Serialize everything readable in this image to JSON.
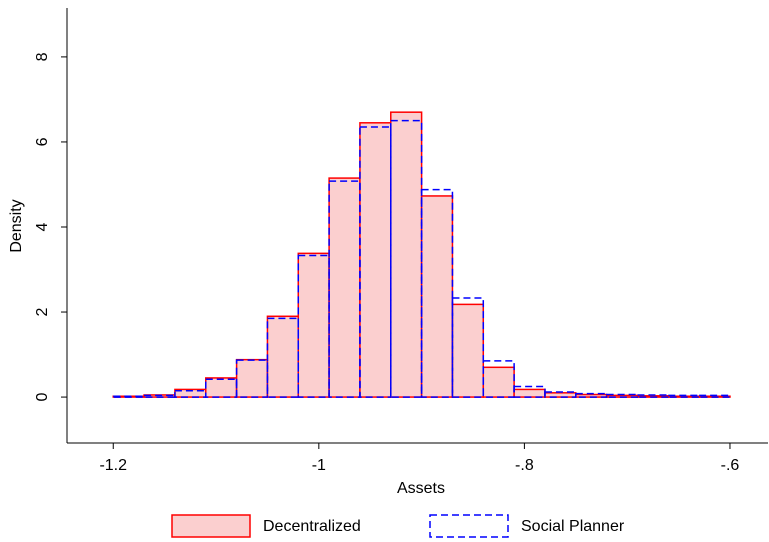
{
  "chart_data": {
    "type": "histogram",
    "x_label": "Assets",
    "y_label": "Density",
    "bins": [
      -1.2,
      -1.17,
      -1.14,
      -1.11,
      -1.08,
      -1.05,
      -1.02,
      -0.99,
      -0.96,
      -0.93,
      -0.9,
      -0.87,
      -0.84,
      -0.81,
      -0.78,
      -0.75,
      -0.72,
      -0.69,
      -0.66,
      -0.63,
      -0.6
    ],
    "series": [
      {
        "name": "Decentralized",
        "color": "#ff0000",
        "fill": "#fbcfcf",
        "dash": false,
        "values": [
          0.02,
          0.05,
          0.18,
          0.45,
          0.88,
          1.9,
          3.38,
          5.15,
          6.45,
          6.7,
          4.73,
          2.18,
          0.7,
          0.18,
          0.1,
          0.06,
          0.04,
          0.03,
          0.02,
          0.02
        ]
      },
      {
        "name": "Social Planner",
        "color": "#0000ff",
        "fill": "none",
        "dash": true,
        "values": [
          0.02,
          0.04,
          0.15,
          0.42,
          0.87,
          1.85,
          3.33,
          5.08,
          6.35,
          6.5,
          4.88,
          2.33,
          0.85,
          0.25,
          0.12,
          0.08,
          0.06,
          0.05,
          0.04,
          0.04
        ]
      }
    ],
    "xlim": [
      -1.245,
      -0.563
    ],
    "xticks": [
      {
        "value": -1.2,
        "label": "-1.2"
      },
      {
        "value": -1,
        "label": "-1"
      },
      {
        "value": -0.8,
        "label": "-.8"
      },
      {
        "value": -0.6,
        "label": "-.6"
      }
    ],
    "ylim": [
      -1.08,
      9.15
    ],
    "yticks": [
      0,
      2,
      4,
      6,
      8
    ]
  }
}
